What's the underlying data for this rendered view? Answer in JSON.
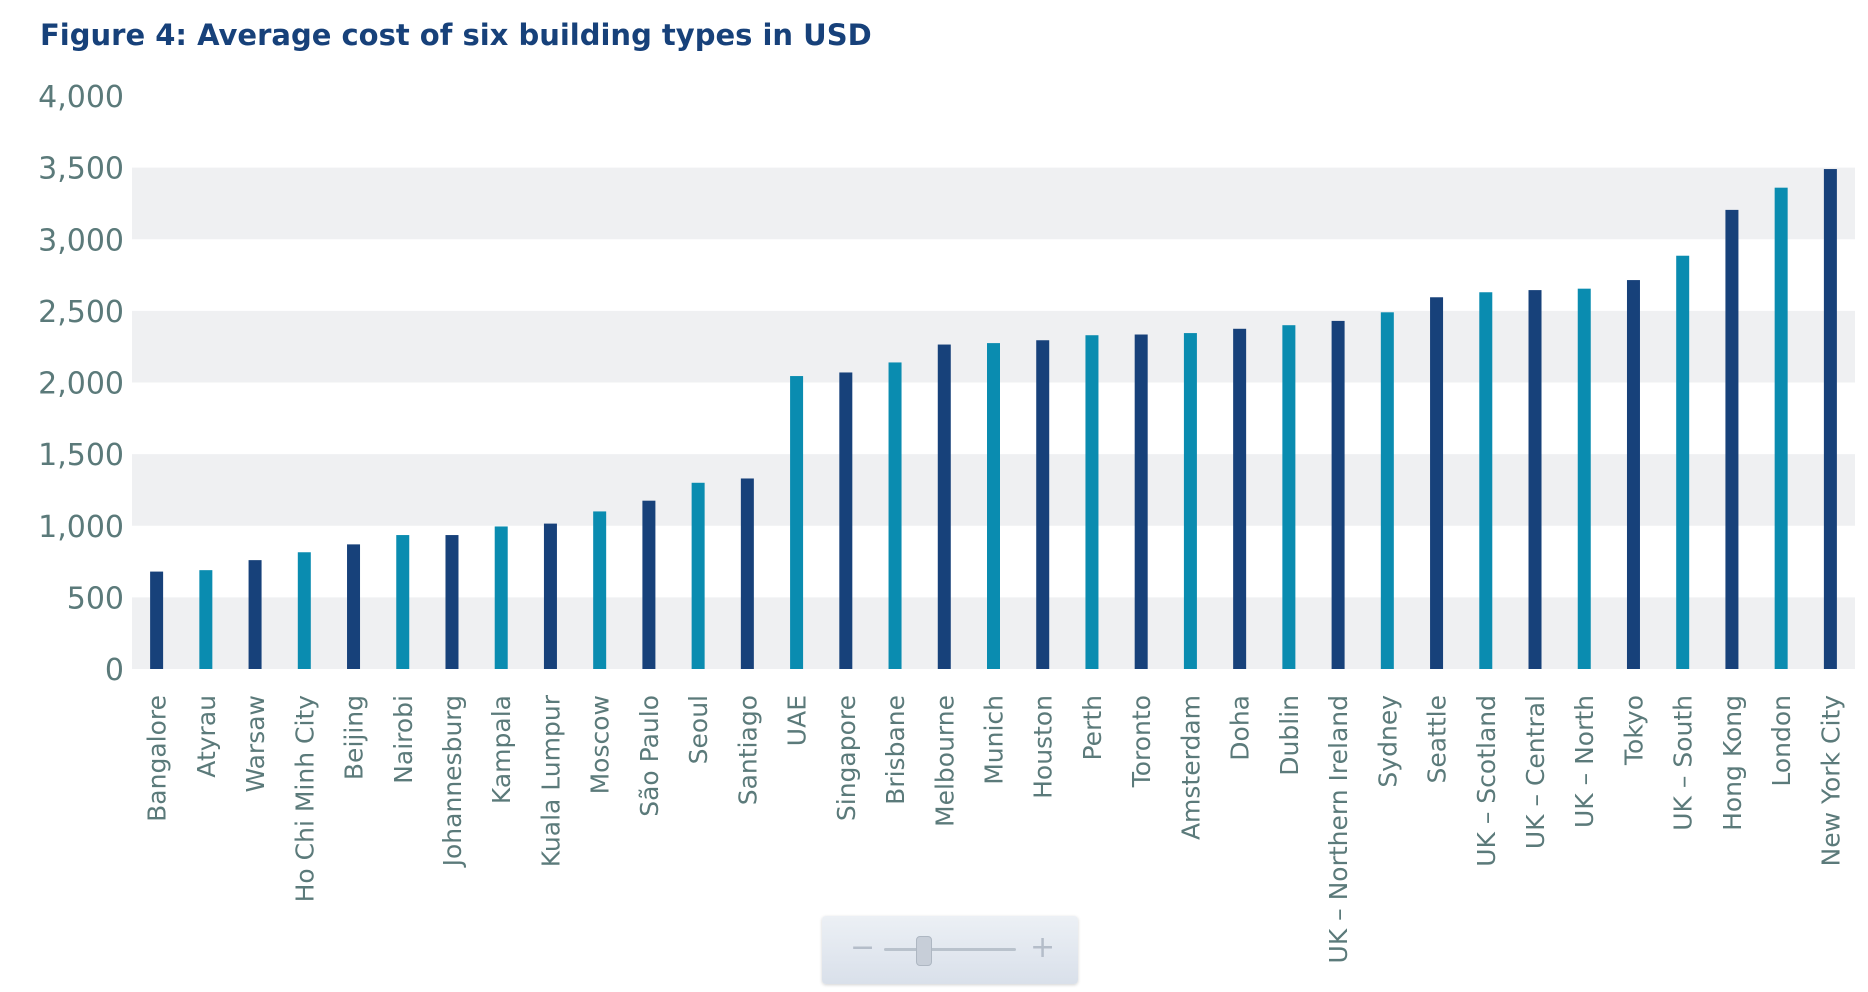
{
  "title": "Figure 4: Average cost of six building types in USD",
  "colors": {
    "dark": "#17417a",
    "light": "#0a8cb0",
    "band": "#eff0f2",
    "text": "#5b7a7a",
    "title": "#17417a"
  },
  "zoom_control": {
    "minus_label": "−",
    "plus_label": "+",
    "level": 0.3
  },
  "chart_data": {
    "type": "bar",
    "title": "Figure 4: Average cost of six building types in USD",
    "xlabel": "",
    "ylabel": "",
    "ylim": [
      0,
      4000
    ],
    "yticks": [
      0,
      500,
      1000,
      1500,
      2000,
      2500,
      3000,
      3500,
      4000
    ],
    "ytick_labels": [
      "0",
      "500",
      "1,000",
      "1,500",
      "2,000",
      "2,500",
      "3,000",
      "3,500",
      "4,000"
    ],
    "grid": "alternating horizontal bands",
    "categories": [
      "Bangalore",
      "Atyrau",
      "Warsaw",
      "Ho Chi Minh City",
      "Beijing",
      "Nairobi",
      "Johannesburg",
      "Kampala",
      "Kuala Lumpur",
      "Moscow",
      "São Paulo",
      "Seoul",
      "Santiago",
      "UAE",
      "Singapore",
      "Brisbane",
      "Melbourne",
      "Munich",
      "Houston",
      "Perth",
      "Toronto",
      "Amsterdam",
      "Doha",
      "Dublin",
      "UK – Northern Ireland",
      "Sydney",
      "Seattle",
      "UK – Scotland",
      "UK – Central",
      "UK – North",
      "Tokyo",
      "UK – South",
      "Hong Kong",
      "London",
      "New York City"
    ],
    "values": [
      680,
      690,
      760,
      815,
      870,
      935,
      935,
      995,
      1015,
      1100,
      1175,
      1300,
      1330,
      2045,
      2070,
      2140,
      2265,
      2275,
      2295,
      2330,
      2335,
      2345,
      2375,
      2400,
      2430,
      2490,
      2595,
      2630,
      2645,
      2655,
      2715,
      2885,
      3205,
      3360,
      3490
    ],
    "bar_colors": [
      "dark",
      "light",
      "dark",
      "light",
      "dark",
      "light",
      "dark",
      "light",
      "dark",
      "light",
      "dark",
      "light",
      "dark",
      "light",
      "dark",
      "light",
      "dark",
      "light",
      "dark",
      "light",
      "dark",
      "light",
      "dark",
      "light",
      "dark",
      "light",
      "dark",
      "light",
      "dark",
      "light",
      "dark",
      "light",
      "dark",
      "light",
      "dark"
    ]
  }
}
